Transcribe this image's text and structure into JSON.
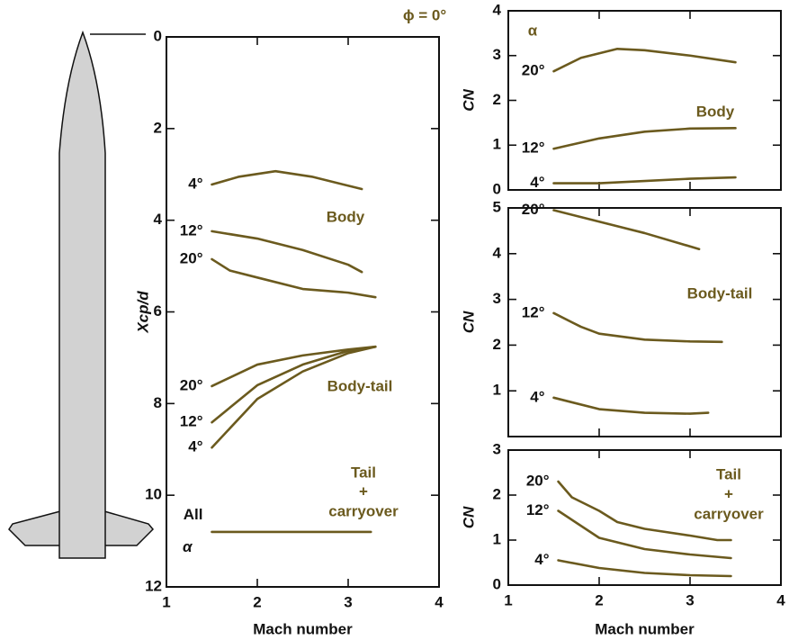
{
  "chart_data": [
    {
      "type": "line",
      "xlim": [
        1,
        4
      ],
      "xticks": [
        1,
        2,
        3,
        4
      ],
      "ylim": [
        0,
        12
      ],
      "yticks": [
        0,
        2,
        4,
        6,
        8,
        10,
        12
      ],
      "y_inverted": true,
      "show_xtick_labels": true,
      "xlabel": "Mach number",
      "ylabel": "Xcp/d",
      "annotations": [
        "ϕ = 0°",
        "Body",
        "Body-tail",
        "Tail",
        "+",
        "carryover"
      ],
      "series": [
        {
          "name": "4°",
          "color": "#6b5a1e",
          "x": [
            1.5,
            1.8,
            2.2,
            2.6,
            3.15
          ],
          "values": [
            3.22,
            3.05,
            2.93,
            3.05,
            3.32
          ]
        },
        {
          "name": "12°",
          "color": "#6b5a1e",
          "x": [
            1.5,
            2.0,
            2.5,
            3.0,
            3.15
          ],
          "values": [
            4.24,
            4.4,
            4.65,
            4.97,
            5.13
          ]
        },
        {
          "name": "20°",
          "color": "#6b5a1e",
          "x": [
            1.5,
            1.7,
            2.0,
            2.5,
            3.0,
            3.3
          ],
          "values": [
            4.85,
            5.1,
            5.25,
            5.5,
            5.58,
            5.68
          ]
        },
        {
          "name": "20°",
          "color": "#6b5a1e",
          "x": [
            1.5,
            2.0,
            2.5,
            3.0,
            3.3
          ],
          "values": [
            7.62,
            7.15,
            6.95,
            6.82,
            6.76
          ]
        },
        {
          "name": "12°",
          "color": "#6b5a1e",
          "x": [
            1.5,
            2.0,
            2.5,
            3.0,
            3.3
          ],
          "values": [
            8.41,
            7.6,
            7.15,
            6.85,
            6.76
          ]
        },
        {
          "name": "4°",
          "color": "#6b5a1e",
          "x": [
            1.5,
            2.0,
            2.5,
            3.0,
            3.3
          ],
          "values": [
            8.96,
            7.9,
            7.3,
            6.9,
            6.76
          ]
        },
        {
          "name": "All α",
          "color": "#6b5a1e",
          "x": [
            1.5,
            3.25
          ],
          "values": [
            10.8,
            10.8
          ]
        }
      ]
    },
    {
      "type": "line",
      "xlim": [
        1,
        4
      ],
      "xticks": [
        1,
        2,
        3,
        4
      ],
      "ylim": [
        0,
        4
      ],
      "yticks": [
        0,
        1,
        2,
        3,
        4
      ],
      "show_xtick_labels": false,
      "ylabel": "CN",
      "annotations": [
        "α",
        "Body"
      ],
      "series": [
        {
          "name": "20°",
          "color": "#6b5a1e",
          "x": [
            1.5,
            1.8,
            2.2,
            2.5,
            3.0,
            3.5
          ],
          "values": [
            2.65,
            2.95,
            3.15,
            3.12,
            3.0,
            2.85
          ]
        },
        {
          "name": "12°",
          "color": "#6b5a1e",
          "x": [
            1.5,
            2.0,
            2.5,
            3.0,
            3.5
          ],
          "values": [
            0.92,
            1.15,
            1.3,
            1.37,
            1.38
          ]
        },
        {
          "name": "4°",
          "color": "#6b5a1e",
          "x": [
            1.5,
            2.0,
            2.5,
            3.0,
            3.5
          ],
          "values": [
            0.15,
            0.15,
            0.2,
            0.25,
            0.28
          ]
        }
      ]
    },
    {
      "type": "line",
      "xlim": [
        1,
        4
      ],
      "xticks": [
        1,
        2,
        3,
        4
      ],
      "ylim": [
        0,
        5
      ],
      "yticks": [
        1,
        2,
        3,
        4,
        5
      ],
      "show_xtick_labels": false,
      "ylabel": "CN",
      "annotations": [
        "Body-tail"
      ],
      "series": [
        {
          "name": "20°",
          "color": "#6b5a1e",
          "x": [
            1.5,
            2.0,
            2.5,
            3.1
          ],
          "values": [
            4.95,
            4.7,
            4.45,
            4.1
          ]
        },
        {
          "name": "12°",
          "color": "#6b5a1e",
          "x": [
            1.5,
            1.8,
            2.0,
            2.5,
            3.0,
            3.35
          ],
          "values": [
            2.7,
            2.4,
            2.25,
            2.12,
            2.08,
            2.07
          ]
        },
        {
          "name": "4°",
          "color": "#6b5a1e",
          "x": [
            1.5,
            2.0,
            2.5,
            3.0,
            3.2
          ],
          "values": [
            0.85,
            0.6,
            0.52,
            0.5,
            0.52
          ]
        }
      ]
    },
    {
      "type": "line",
      "xlim": [
        1,
        4
      ],
      "xticks": [
        1,
        2,
        3,
        4
      ],
      "ylim": [
        0,
        3
      ],
      "yticks": [
        0,
        1,
        2,
        3
      ],
      "show_xtick_labels": true,
      "xlabel": "Mach number",
      "ylabel": "CN",
      "annotations": [
        "Tail",
        "+",
        "carryover"
      ],
      "series": [
        {
          "name": "20°",
          "color": "#6b5a1e",
          "x": [
            1.55,
            1.7,
            2.0,
            2.2,
            2.5,
            3.0,
            3.3,
            3.45
          ],
          "values": [
            2.3,
            1.95,
            1.65,
            1.4,
            1.25,
            1.1,
            1.0,
            1.0
          ]
        },
        {
          "name": "12°",
          "color": "#6b5a1e",
          "x": [
            1.55,
            2.0,
            2.5,
            3.0,
            3.45
          ],
          "values": [
            1.65,
            1.05,
            0.8,
            0.68,
            0.6
          ]
        },
        {
          "name": "4°",
          "color": "#6b5a1e",
          "x": [
            1.55,
            2.0,
            2.5,
            3.0,
            3.45
          ],
          "values": [
            0.55,
            0.38,
            0.27,
            0.22,
            0.2
          ]
        }
      ]
    }
  ]
}
